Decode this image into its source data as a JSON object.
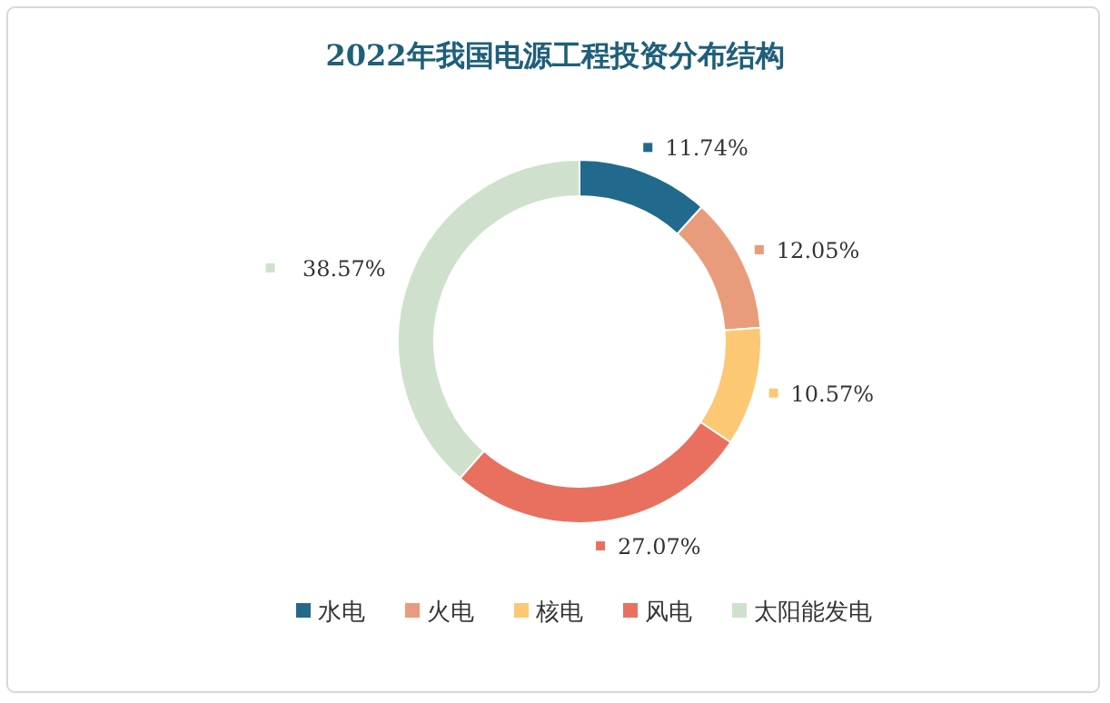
{
  "chart_data": {
    "type": "donut",
    "title": "2022年我国电源工程投资分布结构",
    "categories": [
      "水电",
      "火电",
      "核电",
      "风电",
      "太阳能发电"
    ],
    "values": [
      11.74,
      12.05,
      10.57,
      27.07,
      38.57
    ],
    "value_labels": [
      "11.74%",
      "12.05%",
      "10.57%",
      "27.07%",
      "38.57%"
    ],
    "colors": [
      "#216a8d",
      "#e99c7b",
      "#fdc873",
      "#e9705f",
      "#cfe1cc"
    ],
    "legend": "bottom"
  }
}
